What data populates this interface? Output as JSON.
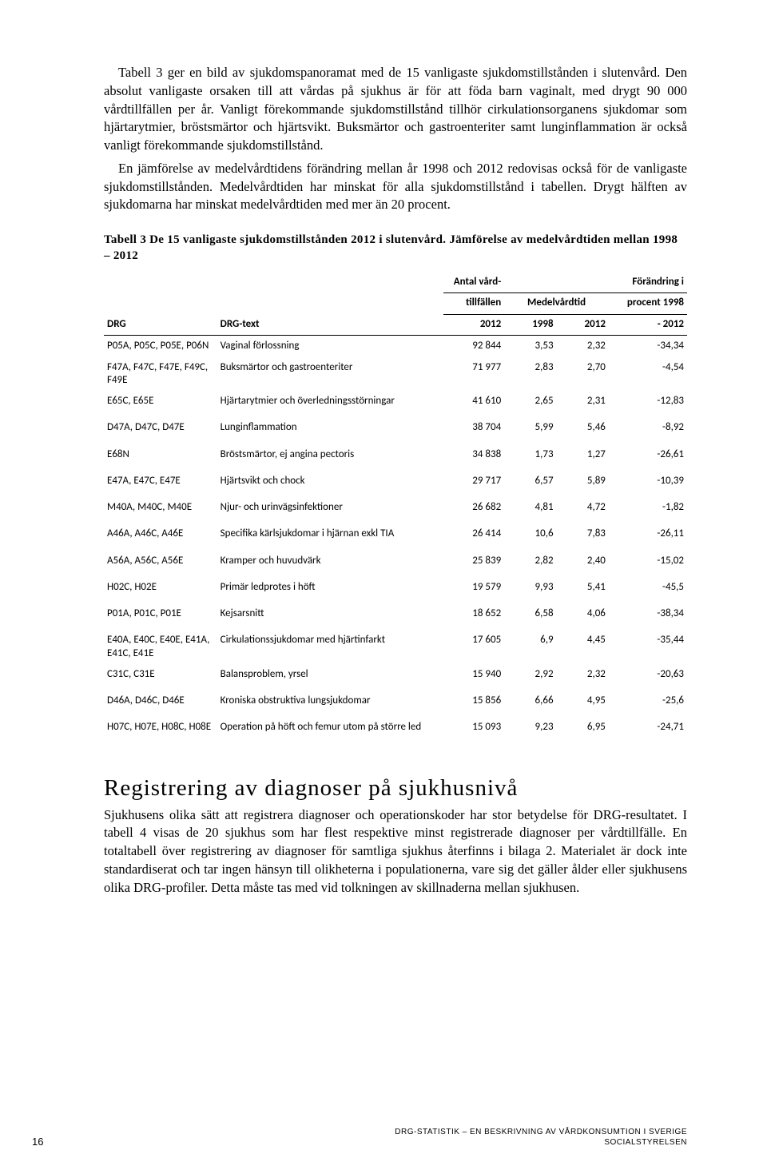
{
  "para1": "Tabell 3 ger en bild av sjukdomspanoramat med de 15 vanligaste sjukdomstillstånden i slutenvård. Den absolut vanligaste orsaken till att vårdas på sjukhus är för att föda barn vaginalt, med drygt 90 000 vårdtillfällen per år. Vanligt förekommande sjukdomstillstånd tillhör cirkulationsorganens sjukdomar som hjärtarytmier, bröstsmärtor och hjärtsvikt. Buksmärtor och gastroenteriter samt lunginflammation är också vanligt förekommande sjukdomstillstånd.",
  "para2": "En jämförelse av medelvårdtidens förändring mellan år 1998 och 2012 redovisas också för de vanligaste sjukdomstillstånden. Medelvårdtiden har minskat för alla sjukdomstillstånd i tabellen. Drygt hälften av sjukdomarna har minskat medelvårdtiden med mer än 20 procent.",
  "tableCaption": "Tabell 3 De 15 vanligaste sjukdomstillstånden 2012 i slutenvård. Jämförelse av medelvårdtiden mellan 1998 – 2012",
  "headers": {
    "drg": "DRG",
    "drgtext": "DRG-text",
    "antal1": "Antal vård-",
    "antal2": "tillfällen",
    "antal3": "2012",
    "medel": "Medelvårdtid",
    "y1998": "1998",
    "y2012": "2012",
    "forandr1": "Förändring i",
    "forandr2": "procent 1998",
    "forandr3": "- 2012"
  },
  "rows": [
    {
      "drg": "P05A, P05C, P05E, P06N",
      "text": "Vaginal förlossning",
      "n": "92 844",
      "m98": "3,53",
      "m12": "2,32",
      "pct": "-34,34",
      "sep": false
    },
    {
      "drg": "F47A, F47C, F47E, F49C, F49E",
      "text": "Buksmärtor och gastroenteriter",
      "n": "71 977",
      "m98": "2,83",
      "m12": "2,70",
      "pct": "-4,54",
      "sep": false
    },
    {
      "drg": "E65C, E65E",
      "text": "Hjärtarytmier och överledningsstörningar",
      "n": "41 610",
      "m98": "2,65",
      "m12": "2,31",
      "pct": "-12,83",
      "sep": true
    },
    {
      "drg": "D47A, D47C, D47E",
      "text": "Lunginflammation",
      "n": "38 704",
      "m98": "5,99",
      "m12": "5,46",
      "pct": "-8,92",
      "sep": true
    },
    {
      "drg": "E68N",
      "text": "Bröstsmärtor, ej angina pectoris",
      "n": "34 838",
      "m98": "1,73",
      "m12": "1,27",
      "pct": "-26,61",
      "sep": true
    },
    {
      "drg": "E47A, E47C, E47E",
      "text": "Hjärtsvikt och chock",
      "n": "29 717",
      "m98": "6,57",
      "m12": "5,89",
      "pct": "-10,39",
      "sep": true
    },
    {
      "drg": "M40A, M40C, M40E",
      "text": "Njur- och urinvägsinfektioner",
      "n": "26 682",
      "m98": "4,81",
      "m12": "4,72",
      "pct": "-1,82",
      "sep": true
    },
    {
      "drg": "A46A, A46C, A46E",
      "text": "Specifika kärlsjukdomar i hjärnan exkl TIA",
      "n": "26 414",
      "m98": "10,6",
      "m12": "7,83",
      "pct": "-26,11",
      "sep": true
    },
    {
      "drg": "A56A, A56C, A56E",
      "text": "Kramper och huvudvärk",
      "n": "25 839",
      "m98": "2,82",
      "m12": "2,40",
      "pct": "-15,02",
      "sep": true
    },
    {
      "drg": "H02C, H02E",
      "text": "Primär ledprotes i höft",
      "n": "19 579",
      "m98": "9,93",
      "m12": "5,41",
      "pct": "-45,5",
      "sep": true
    },
    {
      "drg": "P01A, P01C, P01E",
      "text": "Kejsarsnitt",
      "n": "18 652",
      "m98": "6,58",
      "m12": "4,06",
      "pct": "-38,34",
      "sep": true
    },
    {
      "drg": "E40A, E40C, E40E, E41A, E41C, E41E",
      "text": "Cirkulationssjukdomar med hjärtinfarkt",
      "n": "17 605",
      "m98": "6,9",
      "m12": "4,45",
      "pct": "-35,44",
      "sep": false
    },
    {
      "drg": "C31C, C31E",
      "text": "Balansproblem, yrsel",
      "n": "15 940",
      "m98": "2,92",
      "m12": "2,32",
      "pct": "-20,63",
      "sep": true
    },
    {
      "drg": "D46A, D46C, D46E",
      "text": "Kroniska obstruktiva lungsjukdomar",
      "n": "15 856",
      "m98": "6,66",
      "m12": "4,95",
      "pct": "-25,6",
      "sep": true
    },
    {
      "drg": "H07C, H07E, H08C, H08E",
      "text": "Operation på höft och femur utom på större led",
      "n": "15 093",
      "m98": "9,23",
      "m12": "6,95",
      "pct": "-24,71",
      "sep": false
    }
  ],
  "sectionHeading": "Registrering av diagnoser på sjukhusnivå",
  "para3": "Sjukhusens olika sätt att registrera diagnoser och operationskoder har stor betydelse för DRG-resultatet. I tabell 4 visas de 20 sjukhus som har flest respektive minst registrerade diagnoser per vårdtillfälle. En totaltabell över registrering av diagnoser för samtliga sjukhus återfinns i bilaga 2. Materialet är dock inte standardiserat och tar ingen hänsyn till olikheterna i populationerna, vare sig det gäller ålder eller sjukhusens olika DRG-profiler. Detta måste tas med vid tolkningen av skillnaderna mellan sjukhusen.",
  "pageNum": "16",
  "footerLine1": "DRG-STATISTIK – EN BESKRIVNING AV VÅRDKONSUMTION I SVERIGE",
  "footerLine2": "SOCIALSTYRELSEN"
}
